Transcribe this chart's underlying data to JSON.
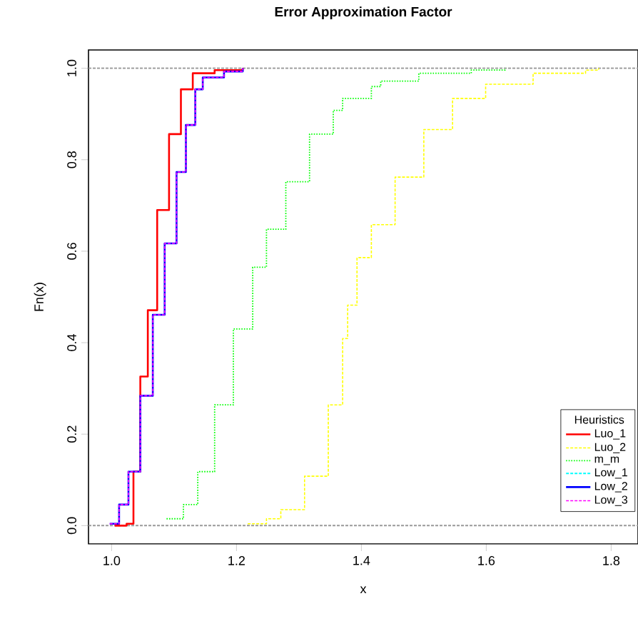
{
  "chart_data": {
    "type": "step",
    "title": "Error Approximation Factor",
    "xlabel": "x",
    "ylabel": "Fn(x)",
    "legend_title": "Heuristics",
    "legend": "bottom right",
    "grid": false,
    "xlim": [
      0.963,
      1.843
    ],
    "ylim": [
      -0.04,
      1.04
    ],
    "xticks": [
      {
        "value": 1.0,
        "label": "1.0"
      },
      {
        "value": 1.2,
        "label": "1.2"
      },
      {
        "value": 1.4,
        "label": "1.4"
      },
      {
        "value": 1.6,
        "label": "1.6"
      },
      {
        "value": 1.8,
        "label": "1.8"
      }
    ],
    "yticks": [
      {
        "value": 0,
        "label": "0.0"
      },
      {
        "value": 0.2,
        "label": "0.2"
      },
      {
        "value": 0.4,
        "label": "0.4"
      },
      {
        "value": 0.6,
        "label": "0.6"
      },
      {
        "value": 0.8,
        "label": "0.8"
      },
      {
        "value": 1.0,
        "label": "1.0"
      }
    ],
    "ref_lines": [
      {
        "axis": "y",
        "value": 0,
        "color": "#999999",
        "line_style": "dashed"
      },
      {
        "axis": "y",
        "value": 1,
        "color": "#999999",
        "line_style": "dashed"
      }
    ],
    "series": [
      {
        "name": "Luo_1",
        "color": "#ff0000",
        "line_style": "solid",
        "x": [
          1.005,
          1.024,
          1.035,
          1.046,
          1.058,
          1.073,
          1.092,
          1.111,
          1.13,
          1.165,
          1.21
        ],
        "values": [
          0,
          0.004,
          0.118,
          0.326,
          0.471,
          0.69,
          0.856,
          0.954,
          0.989,
          0.996,
          1
        ]
      },
      {
        "name": "Luo_2",
        "color": "#ffff00",
        "line_style": "dashed",
        "x": [
          1.218,
          1.248,
          1.271,
          1.309,
          1.347,
          1.37,
          1.378,
          1.393,
          1.416,
          1.454,
          1.5,
          1.546,
          1.599,
          1.675,
          1.759,
          1.78
        ],
        "values": [
          0.004,
          0.015,
          0.035,
          0.108,
          0.264,
          0.409,
          0.482,
          0.586,
          0.658,
          0.762,
          0.866,
          0.934,
          0.965,
          0.989,
          0.996,
          1
        ]
      },
      {
        "name": "m_m",
        "color": "#00ff00",
        "line_style": "dotted",
        "x": [
          1.088,
          1.115,
          1.138,
          1.165,
          1.195,
          1.226,
          1.248,
          1.279,
          1.317,
          1.355,
          1.37,
          1.416,
          1.431,
          1.492,
          1.576,
          1.63
        ],
        "values": [
          0.015,
          0.046,
          0.118,
          0.264,
          0.43,
          0.565,
          0.648,
          0.752,
          0.856,
          0.908,
          0.934,
          0.96,
          0.972,
          0.989,
          0.996,
          1
        ]
      },
      {
        "name": "Low_1",
        "color": "#00ffff",
        "line_style": "dashed"
      },
      {
        "name": "Low_2",
        "color": "#0000ff",
        "line_style": "solid",
        "x": [
          0.997,
          1.012,
          1.027,
          1.046,
          1.066,
          1.085,
          1.104,
          1.119,
          1.134,
          1.146,
          1.18,
          1.21
        ],
        "values": [
          0.004,
          0.046,
          0.118,
          0.284,
          0.461,
          0.617,
          0.773,
          0.876,
          0.954,
          0.98,
          0.993,
          1
        ]
      },
      {
        "name": "Low_3",
        "color": "#ff00ff",
        "line_style": "dashed",
        "x": [
          0.997,
          1.012,
          1.027,
          1.046,
          1.066,
          1.085,
          1.104,
          1.119,
          1.134,
          1.146,
          1.18,
          1.21
        ],
        "values": [
          0.004,
          0.046,
          0.118,
          0.284,
          0.461,
          0.617,
          0.773,
          0.876,
          0.954,
          0.98,
          0.993,
          1
        ]
      }
    ]
  }
}
